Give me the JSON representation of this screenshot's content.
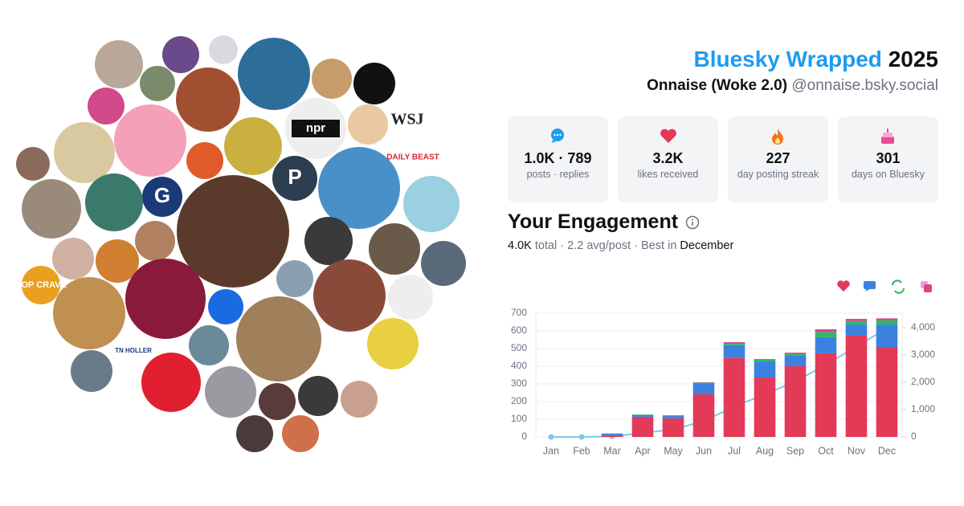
{
  "header": {
    "brand": "Bluesky Wrapped",
    "year": "2025",
    "display_name": "Onnaise (Woke 2.0)",
    "handle": "@onnaise.bsky.social"
  },
  "stats": [
    {
      "value": "1.0K · 789",
      "label": "posts · replies"
    },
    {
      "value": "3.2K",
      "label": "likes received"
    },
    {
      "value": "227",
      "label": "day posting streak"
    },
    {
      "value": "301",
      "label": "days on Bluesky"
    }
  ],
  "engagement": {
    "title": "Your Engagement",
    "total": "4.0K",
    "summary": "total · 2.2 avg/post · Best in",
    "best_month": "December"
  },
  "avatar_labels": [
    "npr",
    "WSJ",
    "DAILY BEAST",
    "P",
    "G",
    "POP CRAVE",
    "TN HOLLER"
  ],
  "chart_data": {
    "type": "bar",
    "stacked": true,
    "categories": [
      "Jan",
      "Feb",
      "Mar",
      "Apr",
      "May",
      "Jun",
      "Jul",
      "Aug",
      "Sep",
      "Oct",
      "Nov",
      "Dec"
    ],
    "series": [
      {
        "color": "#e23a57",
        "values": [
          0,
          0,
          10,
          114,
          105,
          241,
          447,
          336,
          400,
          473,
          573,
          509
        ]
      },
      {
        "color": "#3b82e0",
        "values": [
          0,
          0,
          8,
          10,
          15,
          59,
          72,
          91,
          59,
          91,
          63,
          127
        ]
      },
      {
        "color": "#2fb865",
        "values": [
          0,
          0,
          1,
          3,
          3,
          7,
          8,
          10,
          12,
          30,
          20,
          25
        ]
      },
      {
        "color": "#e0408f",
        "values": [
          0,
          0,
          1,
          0,
          0,
          2,
          9,
          4,
          6,
          15,
          12,
          10
        ]
      },
      {
        "type": "line",
        "axis": "y2",
        "color": "#7cc8ec",
        "values": [
          0,
          0,
          20,
          147,
          270,
          579,
          1115,
          1556,
          2033,
          2642,
          3310,
          3981
        ]
      }
    ],
    "ylim": [
      0,
      700
    ],
    "yticks": [
      0,
      100,
      200,
      300,
      400,
      500,
      600,
      700
    ],
    "y2lim": [
      0,
      4530
    ],
    "y2ticks": [
      0,
      {
        "value": 1000,
        "label": "1,000"
      },
      {
        "value": 2000,
        "label": "2,000"
      },
      {
        "value": 3000,
        "label": "3,000"
      },
      {
        "value": 4000,
        "label": "4,000"
      }
    ],
    "grid": true
  }
}
